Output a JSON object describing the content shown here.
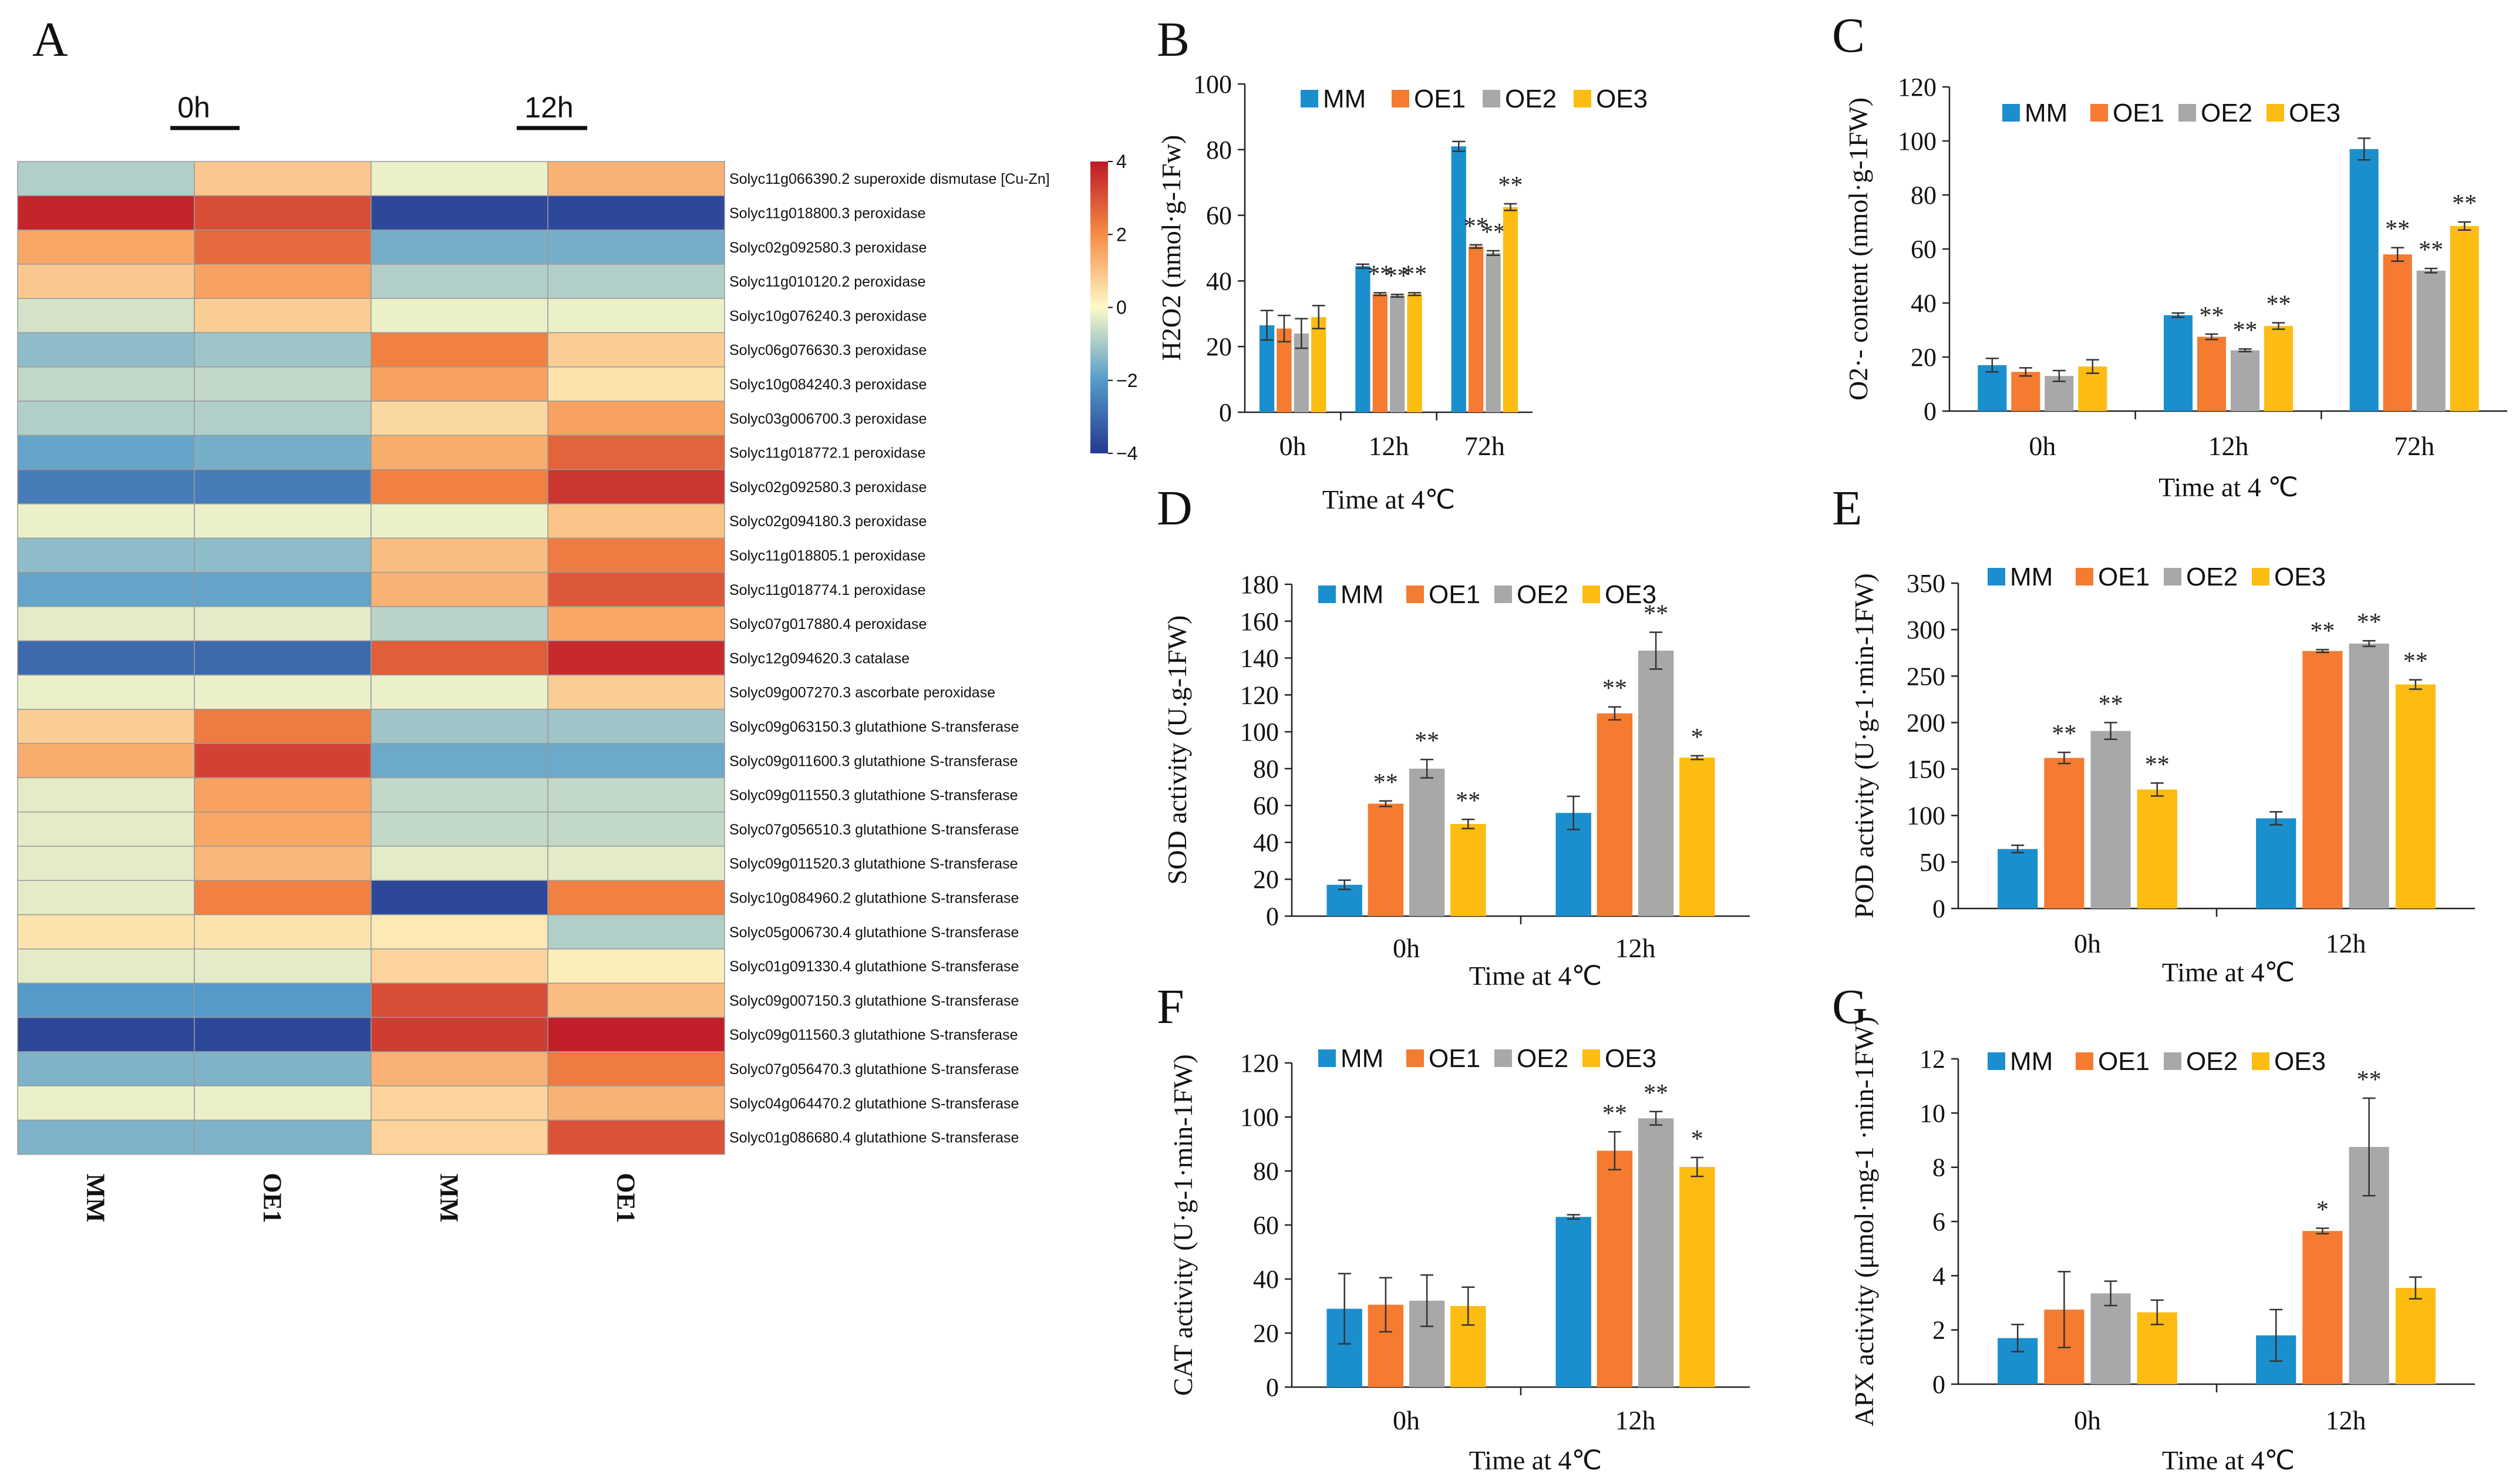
{
  "colors": {
    "MM": "#1b8fce",
    "OE1": "#f47b2f",
    "OE2": "#a8a8a8",
    "OE3": "#fdbc12"
  },
  "heatmap": {
    "letter": "A",
    "time_groups": [
      "0h",
      "12h"
    ],
    "columns": [
      "MM",
      "OE1",
      "MM",
      "OE1"
    ],
    "colorbar_ticks": [
      "4",
      "2",
      "0",
      "−2",
      "−4"
    ],
    "colorbar_range": [
      -4,
      4
    ],
    "rows": [
      {
        "label": "Solyc11g066390.2  superoxide dismutase [Cu-Zn]",
        "values": [
          -0.9,
          0.9,
          -0.2,
          1.3
        ]
      },
      {
        "label": "Solyc11g018800.3  peroxidase",
        "values": [
          3.8,
          3.1,
          -3.7,
          -3.7
        ]
      },
      {
        "label": "Solyc02g092580.3  peroxidase",
        "values": [
          1.5,
          2.6,
          -1.6,
          -1.6
        ]
      },
      {
        "label": "Solyc11g010120.2  peroxidase",
        "values": [
          0.9,
          1.6,
          -0.9,
          -0.9
        ]
      },
      {
        "label": "Solyc10g076240.3  peroxidase",
        "values": [
          -0.5,
          0.8,
          -0.2,
          -0.2
        ]
      },
      {
        "label": "Solyc06g076630.3  peroxidase",
        "values": [
          -1.3,
          -1.1,
          2.2,
          0.8
        ]
      },
      {
        "label": "Solyc10g084240.3  peroxidase",
        "values": [
          -0.7,
          -0.7,
          1.6,
          0.4
        ]
      },
      {
        "label": "Solyc03g006700.3  peroxidase",
        "values": [
          -0.9,
          -0.9,
          0.6,
          1.6
        ]
      },
      {
        "label": "Solyc11g018772.1  peroxidase",
        "values": [
          -1.8,
          -1.6,
          1.4,
          2.7
        ]
      },
      {
        "label": "Solyc02g092580.3  peroxidase",
        "values": [
          -2.6,
          -2.6,
          2.2,
          3.5
        ]
      },
      {
        "label": "Solyc02g094180.3  peroxidase",
        "values": [
          -0.2,
          -0.2,
          -0.2,
          1.0
        ]
      },
      {
        "label": "Solyc11g018805.1  peroxidase",
        "values": [
          -1.3,
          -1.3,
          1.1,
          2.3
        ]
      },
      {
        "label": "Solyc11g018774.1  peroxidase",
        "values": [
          -1.8,
          -1.8,
          1.3,
          2.9
        ]
      },
      {
        "label": "Solyc07g017880.4  peroxidase",
        "values": [
          -0.3,
          -0.3,
          -0.8,
          1.5
        ]
      },
      {
        "label": "Solyc12g094620.3  catalase",
        "values": [
          -3.0,
          -3.0,
          2.8,
          3.7
        ]
      },
      {
        "label": "Solyc09g007270.3  ascorbate peroxidase",
        "values": [
          -0.2,
          -0.2,
          -0.2,
          0.8
        ]
      },
      {
        "label": "Solyc09g063150.3  glutathione S-transferase",
        "values": [
          0.8,
          2.3,
          -1.1,
          -1.1
        ]
      },
      {
        "label": "Solyc09g011600.3  glutathione S-transferase",
        "values": [
          1.4,
          3.3,
          -1.7,
          -1.7
        ]
      },
      {
        "label": "Solyc09g011550.3  glutathione S-transferase",
        "values": [
          -0.3,
          1.6,
          -0.7,
          -0.7
        ]
      },
      {
        "label": "Solyc07g056510.3  glutathione S-transferase",
        "values": [
          -0.3,
          1.5,
          -0.7,
          -0.7
        ]
      },
      {
        "label": "Solyc09g011520.3  glutathione S-transferase",
        "values": [
          -0.3,
          1.2,
          -0.3,
          -0.3
        ]
      },
      {
        "label": "Solyc10g084960.2  glutathione S-transferase",
        "values": [
          -0.3,
          2.2,
          -3.7,
          2.2
        ]
      },
      {
        "label": "Solyc05g006730.4  glutathione S-transferase",
        "values": [
          0.4,
          0.4,
          0.3,
          -0.9
        ]
      },
      {
        "label": "Solyc01g091330.4  glutathione S-transferase",
        "values": [
          -0.3,
          -0.3,
          0.7,
          0.2
        ]
      },
      {
        "label": "Solyc09g007150.3  glutathione S-transferase",
        "values": [
          -2.0,
          -2.0,
          3.1,
          1.1
        ]
      },
      {
        "label": "Solyc09g011560.3  glutathione S-transferase",
        "values": [
          -3.7,
          -3.7,
          3.4,
          3.9
        ]
      },
      {
        "label": "Solyc07g056470.3  glutathione S-transferase",
        "values": [
          -1.5,
          -1.5,
          1.3,
          2.3
        ]
      },
      {
        "label": "Solyc04g064470.2  glutathione S-transferase",
        "values": [
          -0.2,
          -0.2,
          0.7,
          1.3
        ]
      },
      {
        "label": "Solyc01g086680.4  glutathione S-transferase",
        "values": [
          -1.5,
          -1.5,
          0.7,
          3.0
        ]
      }
    ]
  },
  "chart_data": [
    {
      "id": "B",
      "letter": "B",
      "type": "bar",
      "title": "",
      "xlabel": "Time at 4℃",
      "ylabel": "H2O2 (nmol·g-1Fw)",
      "categories": [
        "0h",
        "12h",
        "72h"
      ],
      "ylim": [
        0,
        100
      ],
      "yticks": [
        0,
        20,
        40,
        60,
        80,
        100
      ],
      "series": [
        {
          "name": "MM",
          "values": [
            26.5,
            44.5,
            81
          ],
          "errors": [
            4.5,
            0.6,
            1.5
          ],
          "sig": [
            "",
            "",
            ""
          ]
        },
        {
          "name": "OE1",
          "values": [
            25.5,
            36,
            50.5
          ],
          "errors": [
            4,
            0.4,
            0.5
          ],
          "sig": [
            "",
            "**",
            "**"
          ]
        },
        {
          "name": "OE2",
          "values": [
            24,
            35.5,
            48.5
          ],
          "errors": [
            4.5,
            0.4,
            0.7
          ],
          "sig": [
            "",
            "**",
            "**"
          ]
        },
        {
          "name": "OE3",
          "values": [
            29,
            36,
            62.5
          ],
          "errors": [
            3.5,
            0.4,
            1
          ],
          "sig": [
            "",
            "**",
            "**"
          ]
        }
      ]
    },
    {
      "id": "C",
      "letter": "C",
      "type": "bar",
      "title": "",
      "xlabel": "Time at 4 ℃",
      "ylabel": "O2·- content (nmol·g-1FW)",
      "categories": [
        "0h",
        "12h",
        "72h"
      ],
      "ylim": [
        0,
        120
      ],
      "yticks": [
        0,
        20,
        40,
        60,
        80,
        100,
        120
      ],
      "series": [
        {
          "name": "MM",
          "values": [
            17,
            35.5,
            97
          ],
          "errors": [
            2.5,
            0.8,
            4
          ],
          "sig": [
            "",
            "",
            ""
          ]
        },
        {
          "name": "OE1",
          "values": [
            14.5,
            27.5,
            58
          ],
          "errors": [
            1.5,
            1,
            2.5
          ],
          "sig": [
            "",
            "**",
            "**"
          ]
        },
        {
          "name": "OE2",
          "values": [
            13,
            22.5,
            52
          ],
          "errors": [
            2,
            0.5,
            0.8
          ],
          "sig": [
            "",
            "**",
            "**"
          ]
        },
        {
          "name": "OE3",
          "values": [
            16.5,
            31.5,
            68.5
          ],
          "errors": [
            2.5,
            1.2,
            1.5
          ],
          "sig": [
            "",
            "**",
            "**"
          ]
        }
      ]
    },
    {
      "id": "D",
      "letter": "D",
      "type": "bar",
      "title": "",
      "xlabel": "Time at 4℃",
      "ylabel": "SOD activity (U.g-1FW)",
      "categories": [
        "0h",
        "12h"
      ],
      "ylim": [
        0,
        180
      ],
      "yticks": [
        0,
        20,
        40,
        60,
        80,
        100,
        120,
        140,
        160,
        180
      ],
      "series": [
        {
          "name": "MM",
          "values": [
            17,
            56
          ],
          "errors": [
            2.5,
            9
          ],
          "sig": [
            "",
            ""
          ]
        },
        {
          "name": "OE1",
          "values": [
            61,
            110
          ],
          "errors": [
            1.5,
            3.5
          ],
          "sig": [
            "**",
            "**"
          ]
        },
        {
          "name": "OE2",
          "values": [
            80,
            144
          ],
          "errors": [
            5,
            10
          ],
          "sig": [
            "**",
            "**"
          ]
        },
        {
          "name": "OE3",
          "values": [
            50,
            86
          ],
          "errors": [
            2.5,
            1
          ],
          "sig": [
            "**",
            "*"
          ]
        }
      ]
    },
    {
      "id": "E",
      "letter": "E",
      "type": "bar",
      "title": "",
      "xlabel": "Time at 4℃",
      "ylabel": "POD activity (U·g-1·min-1FW)",
      "categories": [
        "0h",
        "12h"
      ],
      "ylim": [
        0,
        350
      ],
      "yticks": [
        0,
        50,
        100,
        150,
        200,
        250,
        300,
        350
      ],
      "series": [
        {
          "name": "MM",
          "values": [
            64,
            97
          ],
          "errors": [
            4,
            7
          ],
          "sig": [
            "",
            ""
          ]
        },
        {
          "name": "OE1",
          "values": [
            162,
            277
          ],
          "errors": [
            6,
            1.5
          ],
          "sig": [
            "**",
            "**"
          ]
        },
        {
          "name": "OE2",
          "values": [
            191,
            285
          ],
          "errors": [
            9,
            3
          ],
          "sig": [
            "**",
            "**"
          ]
        },
        {
          "name": "OE3",
          "values": [
            128,
            241
          ],
          "errors": [
            7,
            5
          ],
          "sig": [
            "**",
            "**"
          ]
        }
      ]
    },
    {
      "id": "F",
      "letter": "F",
      "type": "bar",
      "title": "",
      "xlabel": "Time at 4℃",
      "ylabel": "CAT activity (U·g-1·min-1FW)",
      "categories": [
        "0h",
        "12h"
      ],
      "ylim": [
        0,
        120
      ],
      "yticks": [
        0,
        20,
        40,
        60,
        80,
        100,
        120
      ],
      "series": [
        {
          "name": "MM",
          "values": [
            29,
            63
          ],
          "errors": [
            13,
            0.8
          ],
          "sig": [
            "",
            ""
          ]
        },
        {
          "name": "OE1",
          "values": [
            30.5,
            87.5
          ],
          "errors": [
            10,
            7
          ],
          "sig": [
            "",
            "**"
          ]
        },
        {
          "name": "OE2",
          "values": [
            32,
            99.5
          ],
          "errors": [
            9.5,
            2.5
          ],
          "sig": [
            "",
            "**"
          ]
        },
        {
          "name": "OE3",
          "values": [
            30,
            81.5
          ],
          "errors": [
            7,
            3.5
          ],
          "sig": [
            "",
            "*"
          ]
        }
      ]
    },
    {
      "id": "G",
      "letter": "G",
      "type": "bar",
      "title": "",
      "xlabel": "Time at 4℃",
      "ylabel": "APX activity (μmol·mg-1 ·min-1FW)",
      "categories": [
        "0h",
        "12h"
      ],
      "ylim": [
        0,
        12
      ],
      "yticks": [
        0,
        2,
        4,
        6,
        8,
        10,
        12
      ],
      "series": [
        {
          "name": "MM",
          "values": [
            1.7,
            1.8
          ],
          "errors": [
            0.5,
            0.95
          ],
          "sig": [
            "",
            ""
          ]
        },
        {
          "name": "OE1",
          "values": [
            2.75,
            5.65
          ],
          "errors": [
            1.4,
            0.1
          ],
          "sig": [
            "",
            "*"
          ]
        },
        {
          "name": "OE2",
          "values": [
            3.35,
            8.75
          ],
          "errors": [
            0.45,
            1.8
          ],
          "sig": [
            "",
            "**"
          ]
        },
        {
          "name": "OE3",
          "values": [
            2.65,
            3.55
          ],
          "errors": [
            0.45,
            0.4
          ],
          "sig": [
            "",
            ""
          ]
        }
      ]
    }
  ]
}
